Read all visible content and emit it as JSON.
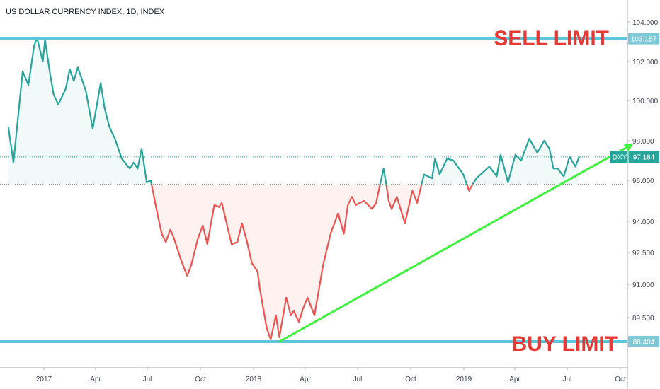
{
  "chart_data": {
    "type": "line",
    "title": "US DOLLAR CURRENCY INDEX, 1D, INDEX",
    "x_ticks": [
      "2017",
      "Apr",
      "Jul",
      "Oct",
      "2018",
      "Apr",
      "Jul",
      "Oct",
      "2019",
      "Apr",
      "Jul",
      "Oct"
    ],
    "y_ticks": [
      "104.000",
      "102.000",
      "100.000",
      "98.000",
      "96.000",
      "94.000",
      "92.500",
      "91.000",
      "89.500"
    ],
    "ylim": [
      87.5,
      104.5
    ],
    "baseline": 95.8,
    "colors": {
      "up": "#26a69a",
      "down": "#ef5350",
      "sell_line": "#5fc5d8",
      "trend": "#3ef23e",
      "sell_text": "#e53935",
      "last_badge": "#26a69a",
      "level_badge": "#7fc8d8"
    },
    "series": [
      {
        "x": [
          "2016-10-31",
          "2016-11-09",
          "2016-11-25",
          "2016-12-05",
          "2016-12-15",
          "2016-12-20",
          "2016-12-30",
          "2017-01-03",
          "2017-01-11",
          "2017-01-18",
          "2017-01-26",
          "2017-02-08",
          "2017-02-15",
          "2017-02-22",
          "2017-03-01",
          "2017-03-15",
          "2017-03-27",
          "2017-04-10",
          "2017-04-17",
          "2017-04-25",
          "2017-05-05",
          "2017-05-17",
          "2017-05-31",
          "2017-06-07",
          "2017-06-14",
          "2017-06-21",
          "2017-06-30",
          "2017-07-07",
          "2017-07-19",
          "2017-07-26",
          "2017-08-02",
          "2017-08-10",
          "2017-08-16",
          "2017-08-29",
          "2017-09-08",
          "2017-09-15",
          "2017-09-27",
          "2017-10-05",
          "2017-10-13",
          "2017-10-25",
          "2017-11-02",
          "2017-11-07",
          "2017-11-24",
          "2017-12-04",
          "2017-12-12",
          "2017-12-20",
          "2017-12-29",
          "2018-01-08",
          "2018-01-12",
          "2018-01-24",
          "2018-01-31",
          "2018-02-09",
          "2018-02-15",
          "2018-02-27",
          "2018-03-07",
          "2018-03-12",
          "2018-03-21",
          "2018-03-28",
          "2018-04-05",
          "2018-04-17",
          "2018-04-25",
          "2018-05-02",
          "2018-05-09",
          "2018-05-15",
          "2018-05-28",
          "2018-06-07",
          "2018-06-14",
          "2018-06-21",
          "2018-06-28",
          "2018-07-12",
          "2018-07-19",
          "2018-07-26",
          "2018-08-02",
          "2018-08-15",
          "2018-08-24",
          "2018-08-29",
          "2018-09-07",
          "2018-09-21",
          "2018-10-04",
          "2018-10-12",
          "2018-10-24",
          "2018-11-07",
          "2018-11-12",
          "2018-11-20",
          "2018-12-03",
          "2018-12-14",
          "2018-12-31",
          "2019-01-10",
          "2019-01-23",
          "2019-02-15",
          "2019-02-28",
          "2019-03-07",
          "2019-03-20",
          "2019-04-02",
          "2019-04-12",
          "2019-04-26",
          "2019-05-10",
          "2019-05-22",
          "2019-05-31",
          "2019-06-07",
          "2019-06-14",
          "2019-06-25",
          "2019-07-05",
          "2019-07-15",
          "2019-07-22"
        ],
        "values": [
          98.7,
          96.9,
          101.5,
          100.8,
          102.8,
          103.2,
          102.0,
          103.1,
          101.5,
          100.3,
          99.8,
          100.6,
          101.6,
          101.0,
          101.7,
          100.5,
          98.6,
          100.9,
          99.6,
          98.7,
          98.1,
          97.1,
          96.6,
          96.9,
          96.6,
          97.6,
          95.9,
          96.0,
          94.3,
          93.4,
          93.0,
          93.6,
          93.2,
          92.1,
          91.4,
          91.9,
          93.2,
          93.8,
          92.9,
          94.8,
          94.7,
          94.9,
          92.9,
          93.0,
          93.9,
          93.1,
          92.0,
          91.6,
          90.8,
          89.0,
          88.5,
          89.6,
          88.6,
          90.4,
          89.6,
          89.8,
          89.3,
          89.9,
          90.4,
          89.6,
          90.8,
          91.9,
          92.7,
          93.4,
          94.4,
          93.4,
          94.8,
          95.2,
          94.8,
          95.0,
          94.8,
          94.6,
          94.9,
          96.6,
          95.0,
          94.6,
          95.2,
          93.9,
          95.5,
          94.9,
          96.3,
          96.1,
          97.1,
          96.3,
          97.1,
          97.0,
          96.3,
          95.5,
          96.1,
          96.7,
          96.2,
          97.3,
          95.9,
          97.3,
          97.0,
          98.1,
          97.4,
          98.0,
          97.6,
          96.6,
          96.6,
          96.2,
          97.2,
          96.7,
          97.2
        ],
        "last": 97.184
      }
    ],
    "overlays": {
      "sell_level": 103.157,
      "buy_level": 88.404,
      "sell_label": "SELL LIMIT",
      "buy_label": "BUY LIMIT",
      "symbol": "DXY",
      "last_label": "97.184",
      "sell_level_label": "103.157",
      "buy_level_label": "88.404",
      "trendline": {
        "x": [
          "2018-02-15",
          "2019-10-20"
        ],
        "y": [
          88.4,
          97.8
        ]
      }
    }
  }
}
